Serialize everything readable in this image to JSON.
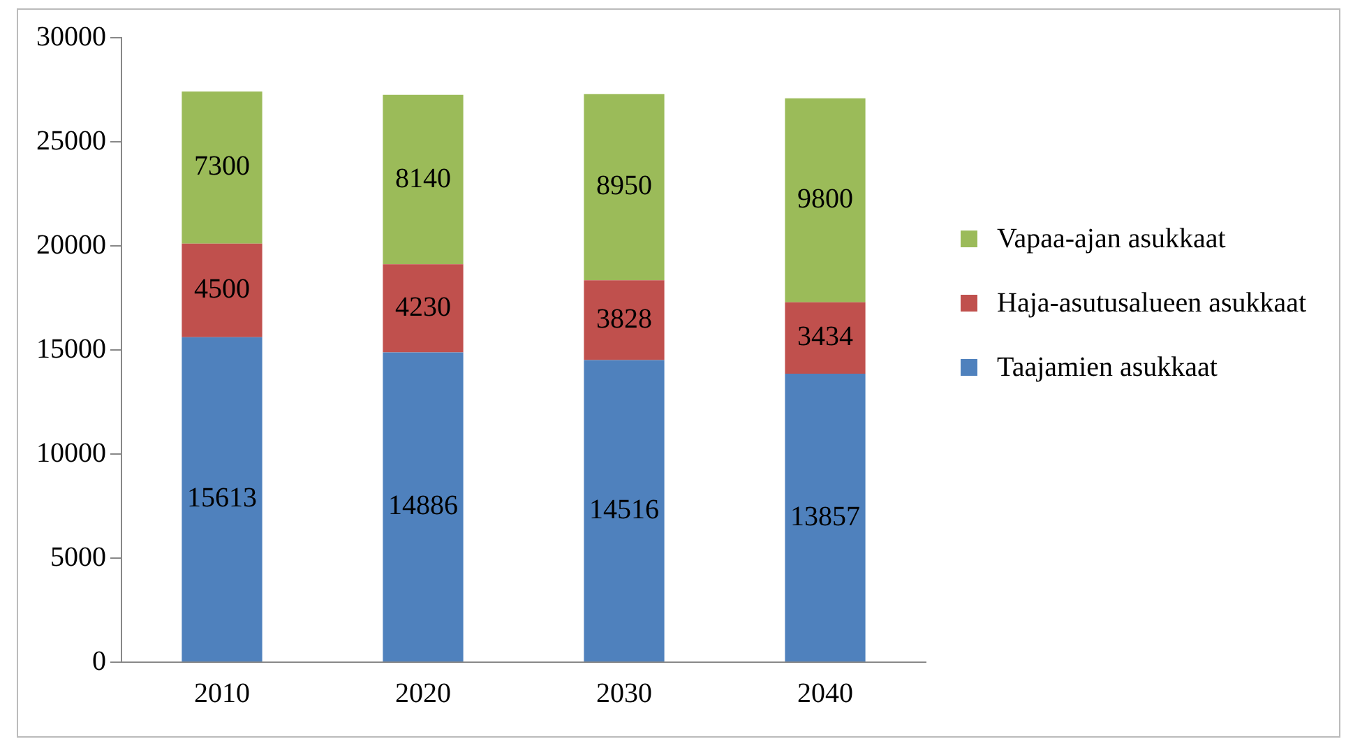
{
  "chart_data": {
    "type": "bar",
    "stacked": true,
    "categories": [
      "2010",
      "2020",
      "2030",
      "2040"
    ],
    "series": [
      {
        "name": "Taajamien asukkaat",
        "color": "#4f81bd",
        "values": [
          15613,
          14886,
          14516,
          13857
        ]
      },
      {
        "name": "Haja-asutusalueen asukkaat",
        "color": "#c0504d",
        "values": [
          4500,
          4230,
          3828,
          3434
        ]
      },
      {
        "name": "Vapaa-ajan asukkaat",
        "color": "#9bbb59",
        "values": [
          7300,
          8140,
          8950,
          9800
        ]
      }
    ],
    "ylim": [
      0,
      30000
    ],
    "yticks": [
      0,
      5000,
      10000,
      15000,
      20000,
      25000,
      30000
    ],
    "grid": false,
    "legend": "right",
    "data_labels": true
  }
}
